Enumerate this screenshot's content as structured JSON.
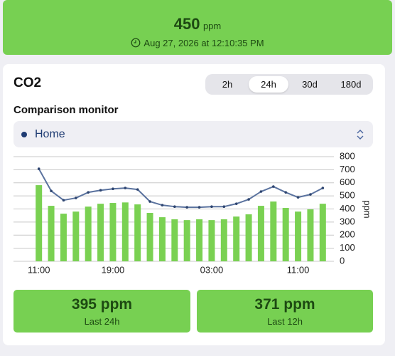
{
  "header": {
    "value": 450,
    "unit": "ppm",
    "timestamp": "Aug 27, 2026 at 12:10:35 PM"
  },
  "card": {
    "title": "CO2",
    "tabs": [
      "2h",
      "24h",
      "30d",
      "180d"
    ],
    "selected_tab": "24h",
    "comparison_label": "Comparison monitor",
    "monitor": "Home"
  },
  "chart_data": {
    "type": "bar",
    "y_label": "ppm",
    "categories": [
      "11:00",
      null,
      null,
      null,
      null,
      null,
      "19:00",
      null,
      null,
      null,
      null,
      null,
      null,
      null,
      "03:00",
      null,
      null,
      null,
      null,
      null,
      null,
      "11:00",
      null,
      null
    ],
    "series": [
      {
        "type": "bar",
        "color": "#7ad152",
        "values": [
          582,
          424,
          364,
          380,
          418,
          440,
          446,
          450,
          435,
          370,
          337,
          321,
          315,
          321,
          315,
          321,
          342,
          359,
          424,
          457,
          408,
          380,
          397,
          440
        ]
      },
      {
        "type": "line",
        "color": "#5b739f",
        "values": [
          707,
          538,
          467,
          484,
          527,
          543,
          554,
          560,
          549,
          457,
          429,
          418,
          413,
          413,
          418,
          418,
          440,
          473,
          533,
          571,
          527,
          489,
          511,
          560
        ]
      }
    ],
    "ylim": [
      0,
      800
    ],
    "yticks": [
      0,
      100,
      200,
      300,
      400,
      500,
      600,
      700,
      800
    ],
    "grid": true,
    "y_axis_side": "right"
  },
  "stats": [
    {
      "value": 395,
      "unit": "ppm",
      "label": "Last 24h"
    },
    {
      "value": 371,
      "unit": "ppm",
      "label": "Last 12h"
    }
  ]
}
